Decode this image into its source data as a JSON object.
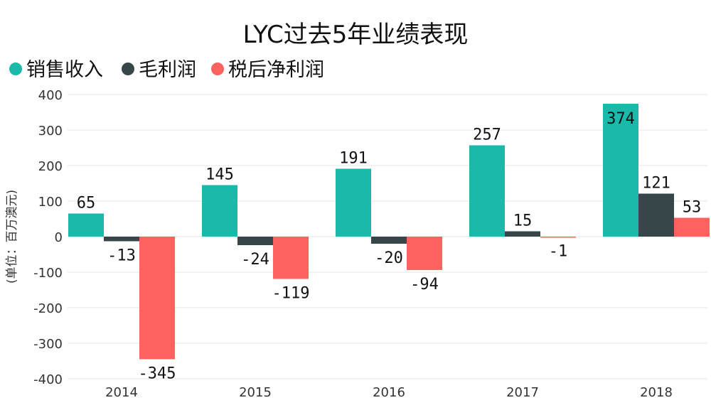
{
  "chart_data": {
    "type": "bar",
    "title": "LYC过去5年业绩表现",
    "ylabel": "(单位：百万澳元)",
    "xlabel": "",
    "categories": [
      "2014",
      "2015",
      "2016",
      "2017",
      "2018"
    ],
    "series": [
      {
        "name": "销售收入",
        "color": "#1ab9aa",
        "values": [
          65,
          145,
          191,
          257,
          374
        ]
      },
      {
        "name": "毛利润",
        "color": "#374649",
        "values": [
          -13,
          -24,
          -20,
          15,
          121
        ]
      },
      {
        "name": "税后净利润",
        "color": "#fd625e",
        "values": [
          -345,
          -119,
          -94,
          -1,
          53
        ]
      }
    ],
    "ylim": [
      -400,
      400
    ],
    "yticks": [
      400,
      300,
      200,
      100,
      0,
      -100,
      -200,
      -300,
      -400
    ],
    "grid": true,
    "legend_position": "top-left"
  }
}
